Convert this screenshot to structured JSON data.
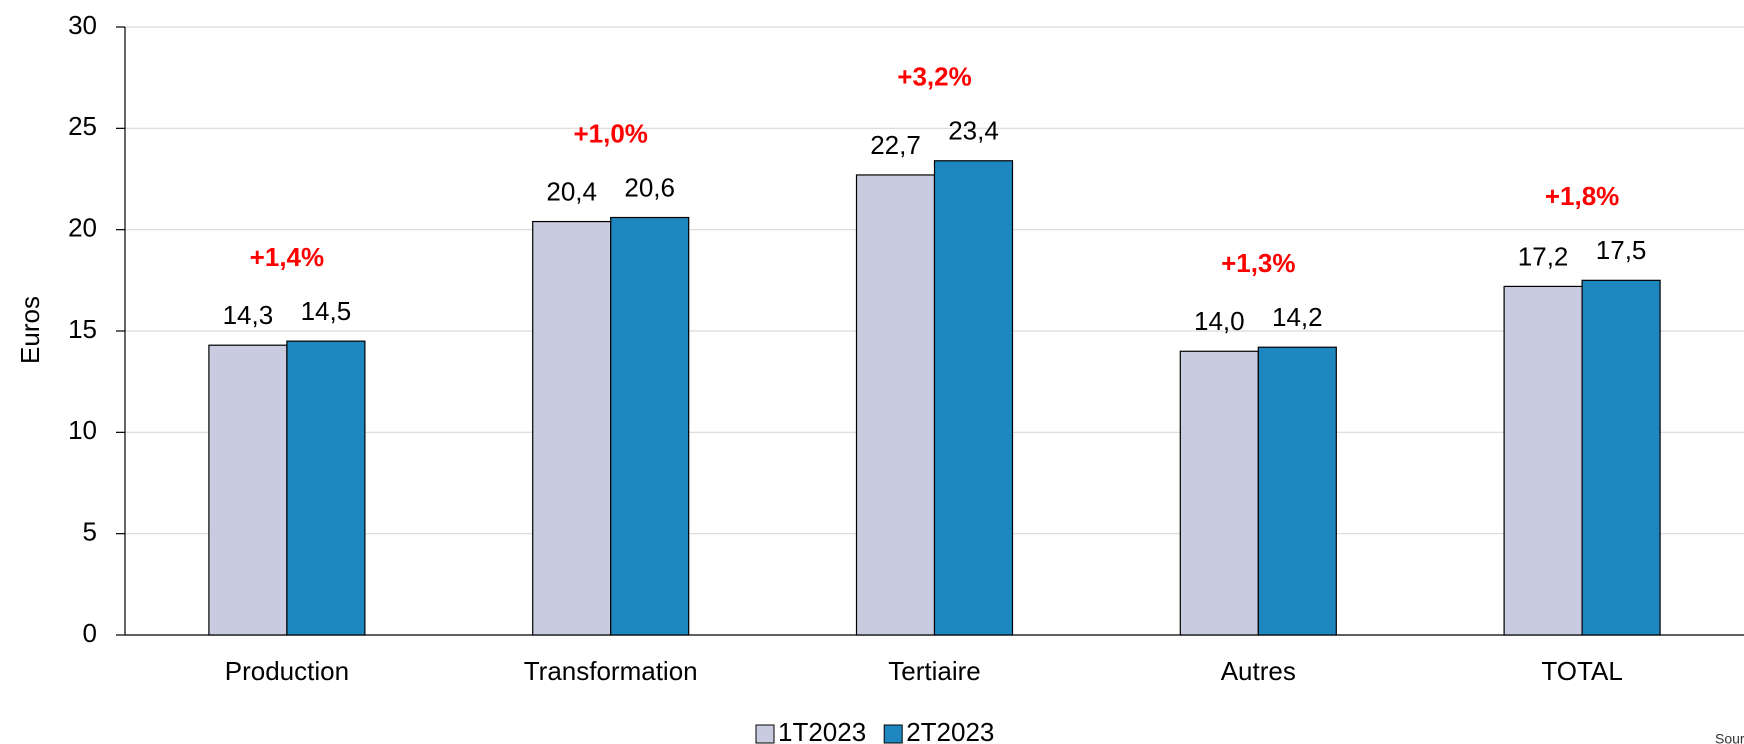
{
  "chart_data": {
    "type": "bar",
    "y_label": "Euros",
    "categories": [
      "Production",
      "Transformation",
      "Tertiaire",
      "Autres",
      "TOTAL"
    ],
    "series": [
      {
        "name": "1T2023",
        "color": "#c9cbe0",
        "values": [
          14.3,
          20.4,
          22.7,
          14.0,
          17.2
        ],
        "value_labels": [
          "14,3",
          "20,4",
          "22,7",
          "14,0",
          "17,2"
        ]
      },
      {
        "name": "2T2023",
        "color": "#1f87c0",
        "values": [
          14.5,
          20.6,
          23.4,
          14.2,
          17.5
        ],
        "value_labels": [
          "14,5",
          "20,6",
          "23,4",
          "14,2",
          "17,5"
        ]
      }
    ],
    "annotations": [
      "+1,4%",
      "+1,0%",
      "+3,2%",
      "+1,3%",
      "+1,8%"
    ],
    "ylim": [
      0,
      30
    ],
    "yticks": [
      0,
      5,
      10,
      15,
      20,
      25,
      30
    ],
    "grid": true,
    "legend": "bottom",
    "source": "Source: MSA"
  }
}
